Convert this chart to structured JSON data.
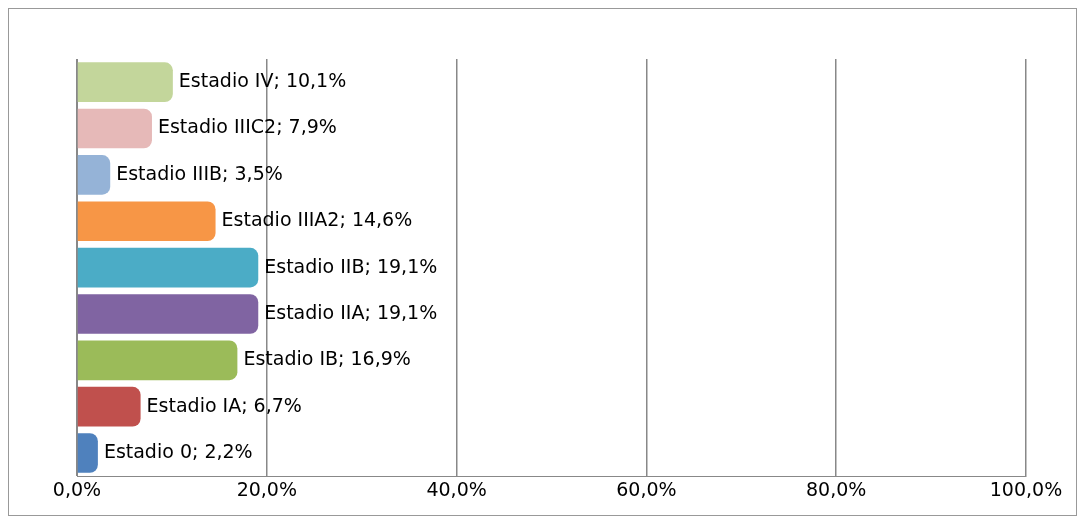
{
  "chart_data": {
    "type": "bar",
    "orientation": "horizontal",
    "categories": [
      null,
      null,
      null,
      null,
      null,
      null,
      null,
      null,
      null
    ],
    "values": [
      10.1,
      7.9,
      3.5,
      14.6,
      19.1,
      19.1,
      16.9,
      6.7,
      2.2
    ],
    "colors": [
      "#c3d69b",
      "#e6b9b8",
      "#95b3d7",
      "#f79646",
      "#4bacc6",
      "#8064a2",
      "#9bbb59",
      "#c0504d",
      "#4f81bd"
    ],
    "value_labels": [
      "Estadio IV; 10,1%",
      "Estadio IIIC2; 7,9%",
      "Estadio IIIB; 3,5%",
      "Estadio IIIA2; 14,6%",
      "Estadio IIB; 19,1%",
      "Estadio IIA; 19,1%",
      "Estadio IB; 16,9%",
      "Estadio IA; 6,7%",
      "Estadio 0; 2,2%"
    ],
    "xlim": [
      0,
      100
    ],
    "xticks": [
      {
        "value": 0,
        "label": "0,0%"
      },
      {
        "value": 20,
        "label": "20,0%"
      },
      {
        "value": 40,
        "label": "40,0%"
      },
      {
        "value": 60,
        "label": "60,0%"
      },
      {
        "value": 80,
        "label": "80,0%"
      },
      {
        "value": 100,
        "label": "100,0%"
      }
    ],
    "grid": "x",
    "tick_labels": "x",
    "legend": false
  }
}
